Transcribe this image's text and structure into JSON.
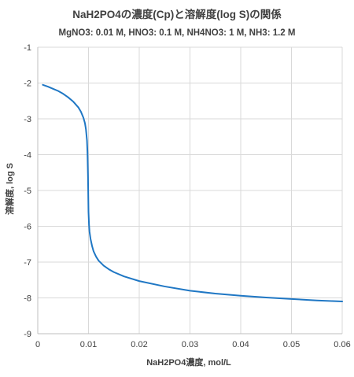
{
  "chart_data": {
    "type": "line",
    "title": "NaH2PO4の濃度(Cp)と溶解度(log S)の関係",
    "subtitle": "MgNO3: 0.01 M, HNO3: 0.1 M, NH4NO3: 1 M, NH3: 1.2 M",
    "xlabel": "NaH2PO4濃度, mol/L",
    "ylabel": "溶解度, log S",
    "xlim": [
      0,
      0.06
    ],
    "ylim": [
      -9,
      -1
    ],
    "xticks": [
      0,
      0.01,
      0.02,
      0.03,
      0.04,
      0.05,
      0.06
    ],
    "xtick_labels": [
      "0",
      "0.01",
      "0.02",
      "0.03",
      "0.04",
      "0.05",
      "0.06"
    ],
    "yticks": [
      -9,
      -8,
      -7,
      -6,
      -5,
      -4,
      -3,
      -2,
      -1
    ],
    "ytick_labels": [
      "-9",
      "-8",
      "-7",
      "-6",
      "-5",
      "-4",
      "-3",
      "-2",
      "-1"
    ],
    "grid": true,
    "series": [
      {
        "color": "#1f77c4",
        "x": [
          0.001,
          0.002,
          0.003,
          0.004,
          0.005,
          0.006,
          0.007,
          0.008,
          0.0085,
          0.009,
          0.0093,
          0.0095,
          0.0097,
          0.0098,
          0.0099,
          0.01,
          0.0101,
          0.0102,
          0.0104,
          0.0107,
          0.011,
          0.0115,
          0.012,
          0.013,
          0.014,
          0.015,
          0.017,
          0.02,
          0.025,
          0.03,
          0.035,
          0.04,
          0.045,
          0.05,
          0.055,
          0.06
        ],
        "y": [
          -2.05,
          -2.1,
          -2.16,
          -2.22,
          -2.3,
          -2.4,
          -2.52,
          -2.68,
          -2.8,
          -2.97,
          -3.12,
          -3.3,
          -3.6,
          -3.95,
          -4.6,
          -5.6,
          -5.95,
          -6.15,
          -6.35,
          -6.55,
          -6.7,
          -6.85,
          -6.96,
          -7.1,
          -7.2,
          -7.28,
          -7.4,
          -7.53,
          -7.68,
          -7.8,
          -7.88,
          -7.94,
          -7.99,
          -8.03,
          -8.07,
          -8.1
        ]
      }
    ]
  }
}
